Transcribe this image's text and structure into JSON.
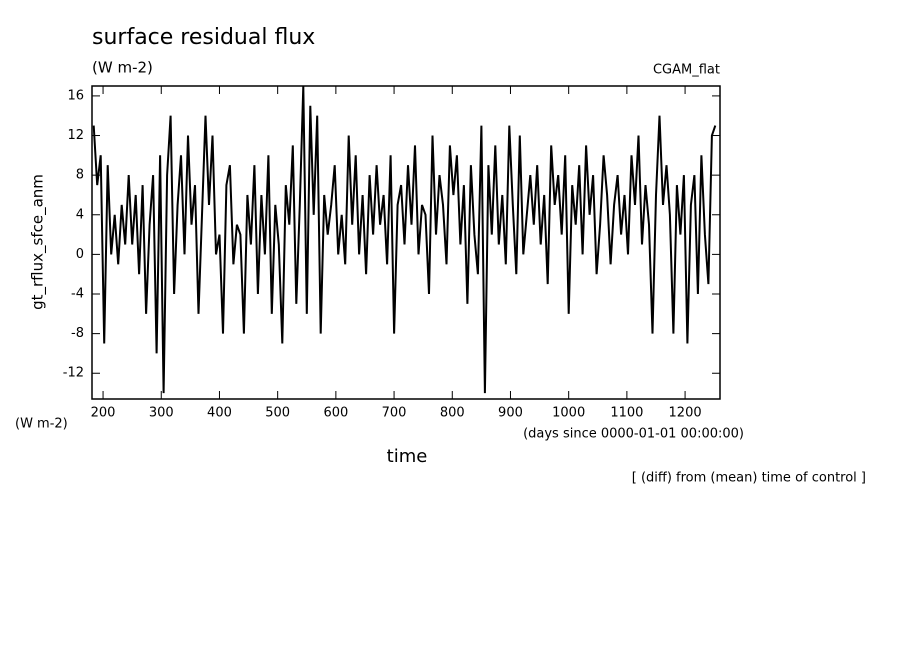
{
  "chart_data": {
    "type": "line",
    "title": "surface residual flux",
    "subtitle": "(W m-2)",
    "annotation": "CGAM_flat",
    "ylabel": "gt_rflux_sfce_anm",
    "yunits": "(W m-2)",
    "xlabel": "time",
    "xunits": "(days since 0000-01-01 00:00:00)",
    "note": "[ (diff) from (mean) time of control ]",
    "xlim": [
      181,
      1260
    ],
    "ylim": [
      -14.6,
      17
    ],
    "xticks": [
      200,
      300,
      400,
      500,
      600,
      700,
      800,
      900,
      1000,
      1100,
      1200
    ],
    "yticks": [
      -12,
      -8,
      -4,
      0,
      4,
      8,
      12,
      16
    ],
    "color": "#000000",
    "x": [
      184,
      190,
      196,
      202,
      208,
      214,
      220,
      226,
      232,
      238,
      244,
      250,
      256,
      262,
      268,
      274,
      280,
      286,
      292,
      298,
      304,
      310,
      316,
      322,
      328,
      334,
      340,
      346,
      352,
      358,
      364,
      370,
      376,
      382,
      388,
      394,
      400,
      406,
      412,
      418,
      424,
      430,
      436,
      442,
      448,
      454,
      460,
      466,
      472,
      478,
      484,
      490,
      496,
      502,
      508,
      514,
      520,
      526,
      532,
      538,
      544,
      550,
      556,
      562,
      568,
      574,
      580,
      586,
      592,
      598,
      604,
      610,
      616,
      622,
      628,
      634,
      640,
      646,
      652,
      658,
      664,
      670,
      676,
      682,
      688,
      694,
      700,
      706,
      712,
      718,
      724,
      730,
      736,
      742,
      748,
      754,
      760,
      766,
      772,
      778,
      784,
      790,
      796,
      802,
      808,
      814,
      820,
      826,
      832,
      838,
      844,
      850,
      856,
      862,
      868,
      874,
      880,
      886,
      892,
      898,
      904,
      910,
      916,
      922,
      928,
      934,
      940,
      946,
      952,
      958,
      964,
      970,
      976,
      982,
      988,
      994,
      1000,
      1006,
      1012,
      1018,
      1024,
      1030,
      1036,
      1042,
      1048,
      1054,
      1060,
      1066,
      1072,
      1078,
      1084,
      1090,
      1096,
      1102,
      1108,
      1114,
      1120,
      1126,
      1132,
      1138,
      1144,
      1150,
      1156,
      1162,
      1168,
      1174,
      1180,
      1186,
      1192,
      1198,
      1204,
      1210,
      1216,
      1222,
      1228,
      1234,
      1240,
      1246,
      1252
    ],
    "values": [
      13,
      7,
      10,
      -9,
      9,
      0,
      4,
      -1,
      5,
      1,
      8,
      1,
      6,
      -2,
      7,
      -6,
      3,
      8,
      -10,
      10,
      -14,
      8,
      14,
      -4,
      5,
      10,
      0,
      12,
      3,
      7,
      -6,
      4,
      14,
      5,
      12,
      0,
      2,
      -8,
      7,
      9,
      -1,
      3,
      2,
      -8,
      6,
      1,
      9,
      -4,
      6,
      0,
      10,
      -6,
      5,
      1,
      -9,
      7,
      3,
      11,
      -5,
      5,
      17,
      -6,
      15,
      4,
      14,
      -8,
      6,
      2,
      5,
      9,
      0,
      4,
      -1,
      12,
      3,
      10,
      0,
      6,
      -2,
      8,
      2,
      9,
      3,
      6,
      -1,
      10,
      -8,
      5,
      7,
      1,
      9,
      3,
      11,
      0,
      5,
      4,
      -4,
      12,
      2,
      8,
      5,
      -1,
      11,
      6,
      10,
      1,
      7,
      -5,
      9,
      2,
      -2,
      13,
      -14,
      9,
      2,
      11,
      1,
      6,
      -1,
      13,
      5,
      -2,
      12,
      0,
      4,
      8,
      3,
      9,
      1,
      6,
      -3,
      11,
      5,
      8,
      2,
      10,
      -6,
      7,
      3,
      9,
      0,
      11,
      4,
      8,
      -2,
      3,
      10,
      6,
      -1,
      5,
      8,
      2,
      6,
      0,
      10,
      5,
      12,
      1,
      7,
      3,
      -8,
      6,
      14,
      5,
      9,
      4,
      -8,
      7,
      2,
      8,
      -9,
      5,
      8,
      -4,
      10,
      2,
      -3,
      12,
      13
    ]
  }
}
